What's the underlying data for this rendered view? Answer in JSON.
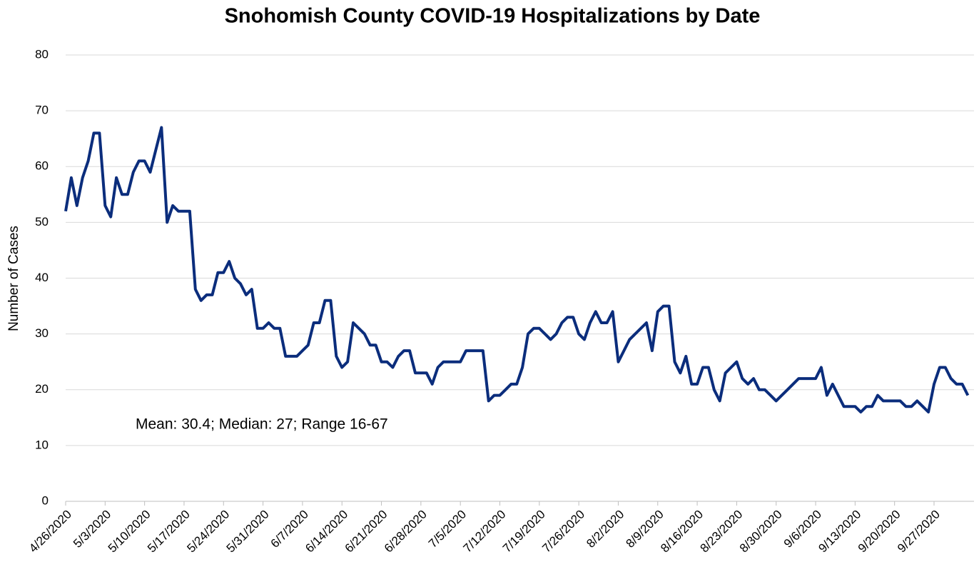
{
  "chart_data": {
    "type": "line",
    "title": "Snohomish County COVID-19 Hospitalizations by Date",
    "y_label": "Number of Cases",
    "annotation": "Mean: 30.4; Median: 27; Range 16-67",
    "categories": [
      "4/26/2020",
      "4/27/2020",
      "4/28/2020",
      "4/29/2020",
      "4/30/2020",
      "5/1/2020",
      "5/2/2020",
      "5/3/2020",
      "5/4/2020",
      "5/5/2020",
      "5/6/2020",
      "5/7/2020",
      "5/8/2020",
      "5/9/2020",
      "5/10/2020",
      "5/11/2020",
      "5/12/2020",
      "5/13/2020",
      "5/14/2020",
      "5/15/2020",
      "5/16/2020",
      "5/17/2020",
      "5/18/2020",
      "5/19/2020",
      "5/20/2020",
      "5/21/2020",
      "5/22/2020",
      "5/23/2020",
      "5/24/2020",
      "5/25/2020",
      "5/26/2020",
      "5/27/2020",
      "5/28/2020",
      "5/29/2020",
      "5/30/2020",
      "5/31/2020",
      "6/1/2020",
      "6/2/2020",
      "6/3/2020",
      "6/4/2020",
      "6/5/2020",
      "6/6/2020",
      "6/7/2020",
      "6/8/2020",
      "6/9/2020",
      "6/10/2020",
      "6/11/2020",
      "6/12/2020",
      "6/13/2020",
      "6/14/2020",
      "6/15/2020",
      "6/16/2020",
      "6/17/2020",
      "6/18/2020",
      "6/19/2020",
      "6/20/2020",
      "6/21/2020",
      "6/22/2020",
      "6/23/2020",
      "6/24/2020",
      "6/25/2020",
      "6/26/2020",
      "6/27/2020",
      "6/28/2020",
      "6/29/2020",
      "6/30/2020",
      "7/1/2020",
      "7/2/2020",
      "7/3/2020",
      "7/4/2020",
      "7/5/2020",
      "7/6/2020",
      "7/7/2020",
      "7/8/2020",
      "7/9/2020",
      "7/10/2020",
      "7/11/2020",
      "7/12/2020",
      "7/13/2020",
      "7/14/2020",
      "7/15/2020",
      "7/16/2020",
      "7/17/2020",
      "7/18/2020",
      "7/19/2020",
      "7/20/2020",
      "7/21/2020",
      "7/22/2020",
      "7/23/2020",
      "7/24/2020",
      "7/25/2020",
      "7/26/2020",
      "7/27/2020",
      "7/28/2020",
      "7/29/2020",
      "7/30/2020",
      "7/31/2020",
      "8/1/2020",
      "8/2/2020",
      "8/3/2020",
      "8/4/2020",
      "8/5/2020",
      "8/6/2020",
      "8/7/2020",
      "8/8/2020",
      "8/9/2020",
      "8/10/2020",
      "8/11/2020",
      "8/12/2020",
      "8/13/2020",
      "8/14/2020",
      "8/15/2020",
      "8/16/2020",
      "8/17/2020",
      "8/18/2020",
      "8/19/2020",
      "8/20/2020",
      "8/21/2020",
      "8/22/2020",
      "8/23/2020",
      "8/24/2020",
      "8/25/2020",
      "8/26/2020",
      "8/27/2020",
      "8/28/2020",
      "8/29/2020",
      "8/30/2020",
      "8/31/2020",
      "9/1/2020",
      "9/2/2020",
      "9/3/2020",
      "9/4/2020",
      "9/5/2020",
      "9/6/2020",
      "9/7/2020",
      "9/8/2020",
      "9/9/2020",
      "9/10/2020",
      "9/11/2020",
      "9/12/2020",
      "9/13/2020",
      "9/14/2020",
      "9/15/2020",
      "9/16/2020",
      "9/17/2020",
      "9/18/2020",
      "9/19/2020",
      "9/20/2020",
      "9/21/2020",
      "9/22/2020",
      "9/23/2020",
      "9/24/2020",
      "9/25/2020",
      "9/26/2020",
      "9/27/2020",
      "9/28/2020",
      "9/29/2020",
      "9/30/2020",
      "10/1/2020",
      "10/2/2020",
      "10/3/2020"
    ],
    "xticks": [
      "4/26/2020",
      "5/3/2020",
      "5/10/2020",
      "5/17/2020",
      "5/24/2020",
      "5/31/2020",
      "6/7/2020",
      "6/14/2020",
      "6/21/2020",
      "6/28/2020",
      "7/5/2020",
      "7/12/2020",
      "7/19/2020",
      "7/26/2020",
      "8/2/2020",
      "8/9/2020",
      "8/16/2020",
      "8/23/2020",
      "8/30/2020",
      "9/6/2020",
      "9/13/2020",
      "9/20/2020",
      "9/27/2020"
    ],
    "series": [
      {
        "name": "Hospitalizations",
        "color": "#0b2d7c",
        "values": [
          52,
          58,
          53,
          58,
          61,
          66,
          66,
          53,
          51,
          58,
          55,
          55,
          59,
          61,
          61,
          59,
          63,
          67,
          50,
          53,
          52,
          52,
          52,
          38,
          36,
          37,
          37,
          41,
          41,
          43,
          40,
          39,
          37,
          38,
          31,
          31,
          32,
          31,
          31,
          26,
          26,
          26,
          27,
          28,
          32,
          32,
          36,
          36,
          26,
          24,
          25,
          32,
          31,
          30,
          28,
          28,
          25,
          25,
          24,
          26,
          27,
          27,
          23,
          23,
          23,
          21,
          24,
          25,
          25,
          25,
          25,
          27,
          27,
          27,
          27,
          18,
          19,
          19,
          20,
          21,
          21,
          24,
          30,
          31,
          31,
          30,
          29,
          30,
          32,
          33,
          33,
          30,
          29,
          32,
          34,
          32,
          32,
          34,
          25,
          27,
          29,
          30,
          31,
          32,
          27,
          34,
          35,
          35,
          25,
          23,
          26,
          21,
          21,
          24,
          24,
          20,
          18,
          23,
          24,
          25,
          22,
          21,
          22,
          20,
          20,
          19,
          18,
          19,
          20,
          21,
          22,
          22,
          22,
          22,
          24,
          19,
          21,
          19,
          17,
          17,
          17,
          16,
          17,
          17,
          19,
          18,
          18,
          18,
          18,
          17,
          17,
          18,
          17,
          16,
          21,
          24,
          24,
          22,
          21,
          21,
          19
        ]
      }
    ],
    "ylim": [
      0,
      80
    ],
    "yticks": [
      0,
      10,
      20,
      30,
      40,
      50,
      60,
      70,
      80
    ],
    "grid": true
  }
}
